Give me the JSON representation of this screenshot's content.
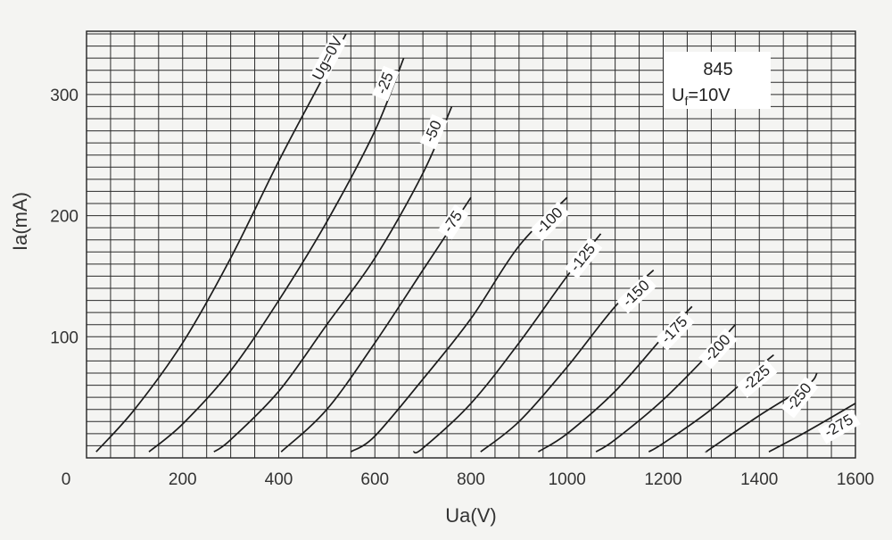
{
  "chart_data": {
    "type": "line",
    "title": "845",
    "subtitle": {
      "main": "U",
      "sub": "f",
      "rest": "=10V"
    },
    "xlabel": "Ua(V)",
    "ylabel": "Ia(mA)",
    "xlim": [
      0,
      1600
    ],
    "ylim": [
      0,
      350
    ],
    "x_ticks": [
      0,
      200,
      400,
      600,
      800,
      1000,
      1200,
      1400,
      1600
    ],
    "y_ticks": [
      100,
      200,
      300
    ],
    "grid": true,
    "series": [
      {
        "name": "Ug=0V",
        "x": [
          20,
          100,
          200,
          300,
          400,
          480,
          540
        ],
        "y": [
          5,
          40,
          95,
          165,
          245,
          305,
          350
        ]
      },
      {
        "name": "-25",
        "x": [
          130,
          200,
          300,
          400,
          500,
          600,
          660
        ],
        "y": [
          5,
          28,
          72,
          130,
          195,
          270,
          330
        ]
      },
      {
        "name": "-50",
        "x": [
          265,
          300,
          400,
          500,
          600,
          700,
          760
        ],
        "y": [
          5,
          15,
          55,
          110,
          165,
          235,
          290
        ]
      },
      {
        "name": "-75",
        "x": [
          405,
          500,
          600,
          700,
          800
        ],
        "y": [
          5,
          40,
          95,
          155,
          215
        ]
      },
      {
        "name": "-100",
        "x": [
          550,
          600,
          700,
          800,
          900,
          1000
        ],
        "y": [
          5,
          18,
          65,
          115,
          175,
          215
        ]
      },
      {
        "name": "-125",
        "x": [
          680,
          700,
          800,
          900,
          1000,
          1070
        ],
        "y": [
          5,
          8,
          45,
          95,
          150,
          185
        ]
      },
      {
        "name": "-150",
        "x": [
          820,
          900,
          1000,
          1100,
          1180
        ],
        "y": [
          5,
          30,
          75,
          125,
          155
        ]
      },
      {
        "name": "-175",
        "x": [
          940,
          1000,
          1100,
          1200,
          1260
        ],
        "y": [
          5,
          20,
          55,
          100,
          125
        ]
      },
      {
        "name": "-200",
        "x": [
          1060,
          1100,
          1200,
          1300,
          1350
        ],
        "y": [
          5,
          15,
          48,
          88,
          110
        ]
      },
      {
        "name": "-225",
        "x": [
          1170,
          1200,
          1300,
          1400,
          1430
        ],
        "y": [
          5,
          12,
          40,
          75,
          85
        ]
      },
      {
        "name": "-250",
        "x": [
          1290,
          1300,
          1400,
          1500,
          1520
        ],
        "y": [
          5,
          8,
          35,
          60,
          70
        ]
      },
      {
        "name": "-275",
        "x": [
          1420,
          1500,
          1600
        ],
        "y": [
          5,
          22,
          45
        ]
      }
    ]
  }
}
